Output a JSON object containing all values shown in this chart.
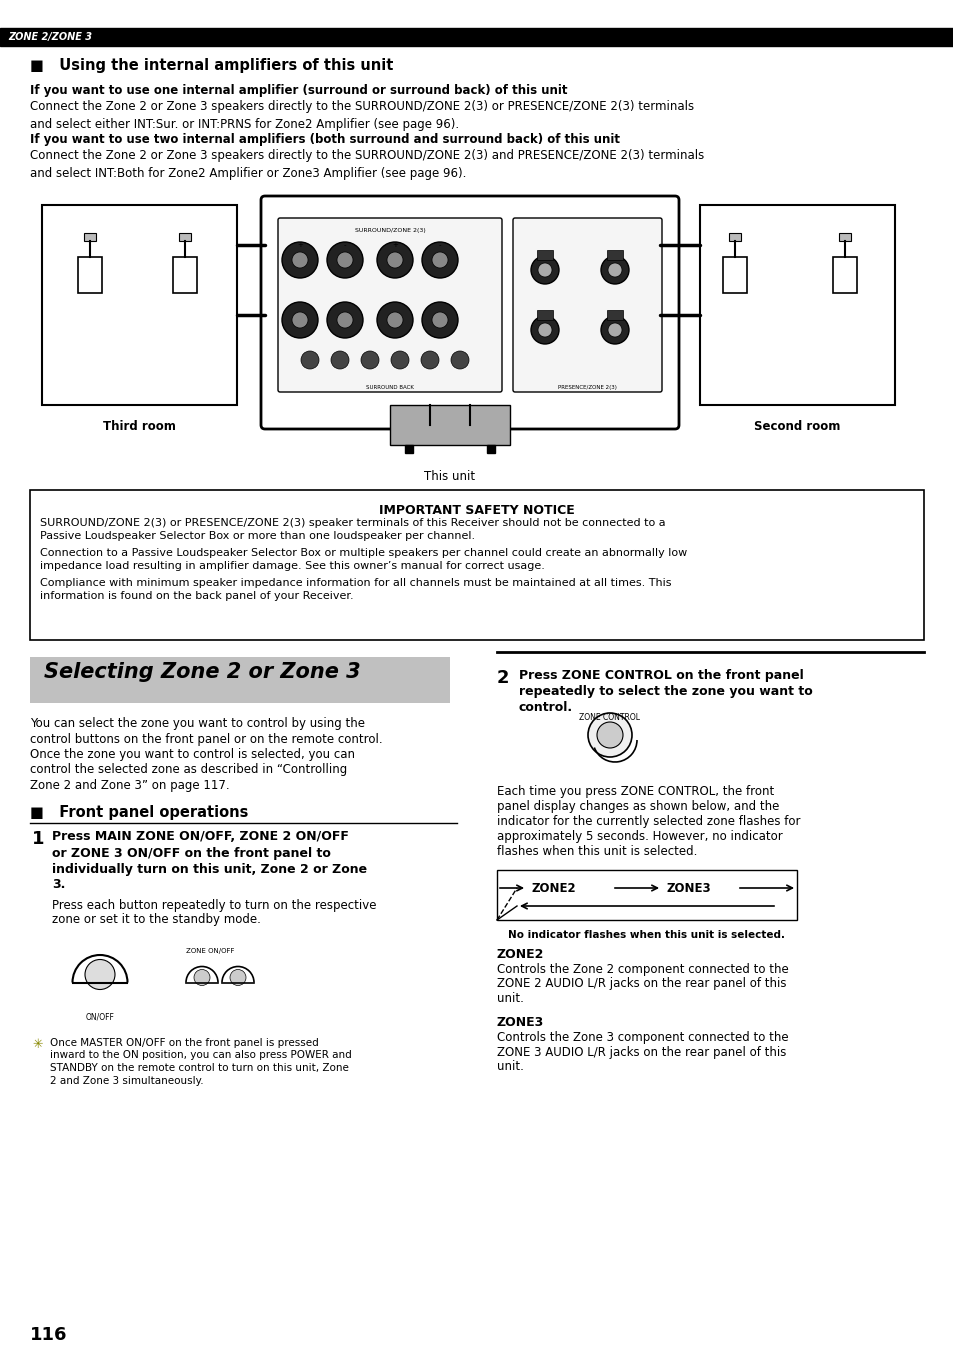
{
  "page_number": "116",
  "header_bg": "#000000",
  "header_text": "ZONE 2/ZONE 3",
  "header_text_color": "#ffffff",
  "section1_title": "■   Using the internal amplifiers of this unit",
  "sub1_bold": "If you want to use one internal amplifier (surround or surround back) of this unit",
  "sub1_body": "Connect the Zone 2 or Zone 3 speakers directly to the SURROUND/ZONE 2(3) or PRESENCE/ZONE 2(3) terminals\nand select either INT:Sur. or INT:PRNS for Zone2 Amplifier (see page 96).",
  "sub2_bold": "If you want to use two internal amplifiers (both surround and surround back) of this unit",
  "sub2_body": "Connect the Zone 2 or Zone 3 speakers directly to the SURROUND/ZONE 2(3) and PRESENCE/ZONE 2(3) terminals\nand select INT:Both for Zone2 Amplifier or Zone3 Amplifier (see page 96).",
  "third_room_label": "Third room",
  "this_unit_label": "This unit",
  "second_room_label": "Second room",
  "safety_title": "IMPORTANT SAFETY NOTICE",
  "safety_line1": "SURROUND/ZONE 2(3) or PRESENCE/ZONE 2(3) speaker terminals of this Receiver should not be connected to a",
  "safety_line2": "Passive Loudspeaker Selector Box or more than one loudspeaker per channel.",
  "safety_line3": "Connection to a Passive Loudspeaker Selector Box or multiple speakers per channel could create an abnormally low",
  "safety_line4": "impedance load resulting in amplifier damage. See this owner’s manual for correct usage.",
  "safety_line5": "Compliance with minimum speaker impedance information for all channels must be maintained at all times. This",
  "safety_line6": "information is found on the back panel of your Receiver.",
  "selecting_title": "Selecting Zone 2 or Zone 3",
  "selecting_bg": "#c0c0c0",
  "selecting_body_l1": "You can select the zone you want to control by using the",
  "selecting_body_l2": "control buttons on the front panel or on the remote control.",
  "selecting_body_l3": "Once the zone you want to control is selected, you can",
  "selecting_body_l4": "control the selected zone as described in “Controlling",
  "selecting_body_l5": "Zone 2 and Zone 3” on page 117.",
  "front_panel_title": "■   Front panel operations",
  "step1_num": "1",
  "step1_bold_l1": "Press MAIN ZONE ON/OFF, ZONE 2 ON/OFF",
  "step1_bold_l2": "or ZONE 3 ON/OFF on the front panel to",
  "step1_bold_l3": "individually turn on this unit, Zone 2 or Zone",
  "step1_bold_l4": "3.",
  "step1_body_l1": "Press each button repeatedly to turn on the respective",
  "step1_body_l2": "zone or set it to the standby mode.",
  "step1_note_l1": "Once MASTER ON/OFF on the front panel is pressed",
  "step1_note_l2": "inward to the ON position, you can also press POWER and",
  "step1_note_l3": "STANDBY on the remote control to turn on this unit, Zone",
  "step1_note_l4": "2 and Zone 3 simultaneously.",
  "step2_num": "2",
  "step2_bold_l1": "Press ZONE CONTROL on the front panel",
  "step2_bold_l2": "repeatedly to select the zone you want to",
  "step2_bold_l3": "control.",
  "step2_body_l1": "Each time you press ZONE CONTROL, the front",
  "step2_body_l2": "panel display changes as shown below, and the",
  "step2_body_l3": "indicator for the currently selected zone flashes for",
  "step2_body_l4": "approximately 5 seconds. However, no indicator",
  "step2_body_l5": "flashes when this unit is selected.",
  "zone_diagram_label": "No indicator flashes when this unit is selected.",
  "zone2_title": "ZONE2",
  "zone2_body_l1": "Controls the Zone 2 component connected to the",
  "zone2_body_l2": "ZONE 2 AUDIO L/R jacks on the rear panel of this",
  "zone2_body_l3": "unit.",
  "zone3_title": "ZONE3",
  "zone3_body_l1": "Controls the Zone 3 component connected to the",
  "zone3_body_l2": "ZONE 3 AUDIO L/R jacks on the rear panel of this",
  "zone3_body_l3": "unit.",
  "bg_color": "#ffffff",
  "text_color": "#000000"
}
